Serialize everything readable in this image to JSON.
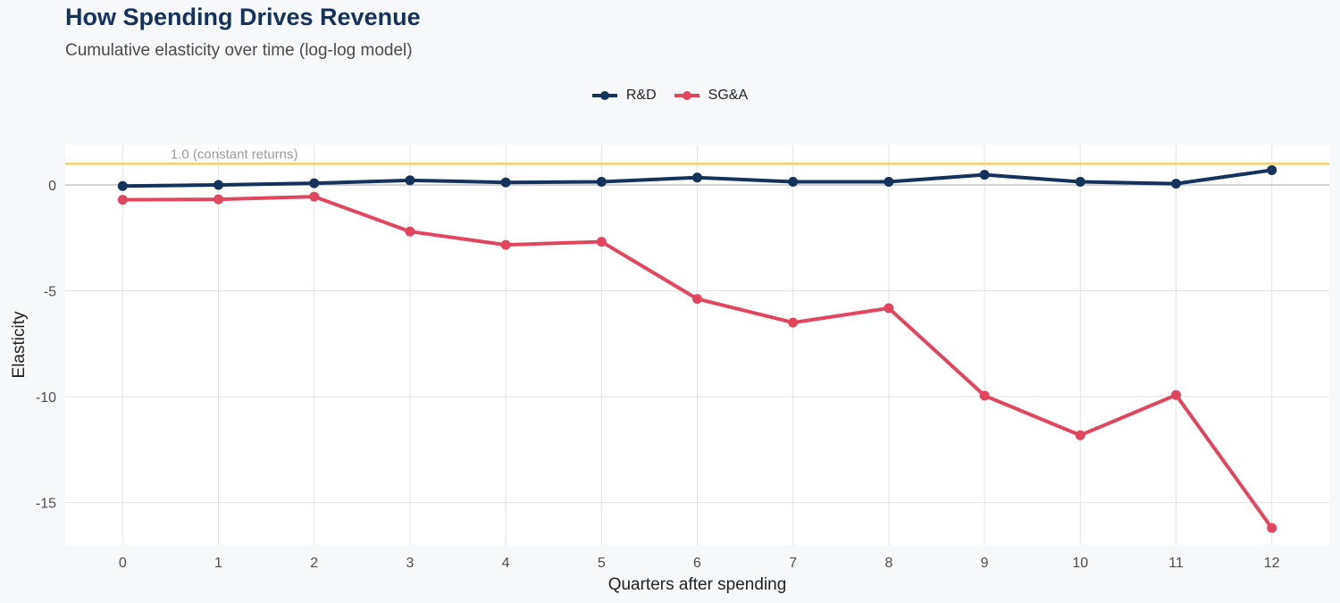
{
  "colors": {
    "background": "#f7f8fa",
    "panel": "#ffffff",
    "grid": "#e3e3e3",
    "zero_line": "#c8c8c8",
    "reference_line": "#f2d06b",
    "rd": "#14325c",
    "sga": "#e2455e"
  },
  "chart_data": {
    "type": "line",
    "title": "How Spending Drives Revenue",
    "subtitle": "Cumulative elasticity over time (log-log model)",
    "xlabel": "Quarters after spending",
    "ylabel": "Elasticity",
    "x": [
      0,
      1,
      2,
      3,
      4,
      5,
      6,
      7,
      8,
      9,
      10,
      11,
      12
    ],
    "x_tick_labels": [
      "0",
      "1",
      "2",
      "3",
      "4",
      "5",
      "6",
      "7",
      "8",
      "9",
      "10",
      "11",
      "12"
    ],
    "xlim": [
      -0.6,
      12.6
    ],
    "ylim": [
      -17.0,
      1.9
    ],
    "y_ticks": [
      0,
      -5,
      -10,
      -15
    ],
    "y_tick_labels": [
      "0",
      "-5",
      "-10",
      "-15"
    ],
    "grid": true,
    "legend_position": "top-center",
    "reference_line": {
      "y": 1.0,
      "label": "1.0 (constant returns)"
    },
    "series": [
      {
        "name": "R&D",
        "color_key": "rd",
        "values": [
          -0.05,
          0.0,
          0.08,
          0.22,
          0.12,
          0.15,
          0.35,
          0.15,
          0.15,
          0.48,
          0.15,
          0.06,
          0.7
        ]
      },
      {
        "name": "SG&A",
        "color_key": "sga",
        "values": [
          -0.7,
          -0.68,
          -0.55,
          -2.2,
          -2.83,
          -2.68,
          -5.38,
          -6.5,
          -5.82,
          -9.95,
          -11.82,
          -9.92,
          -16.2
        ]
      }
    ]
  }
}
